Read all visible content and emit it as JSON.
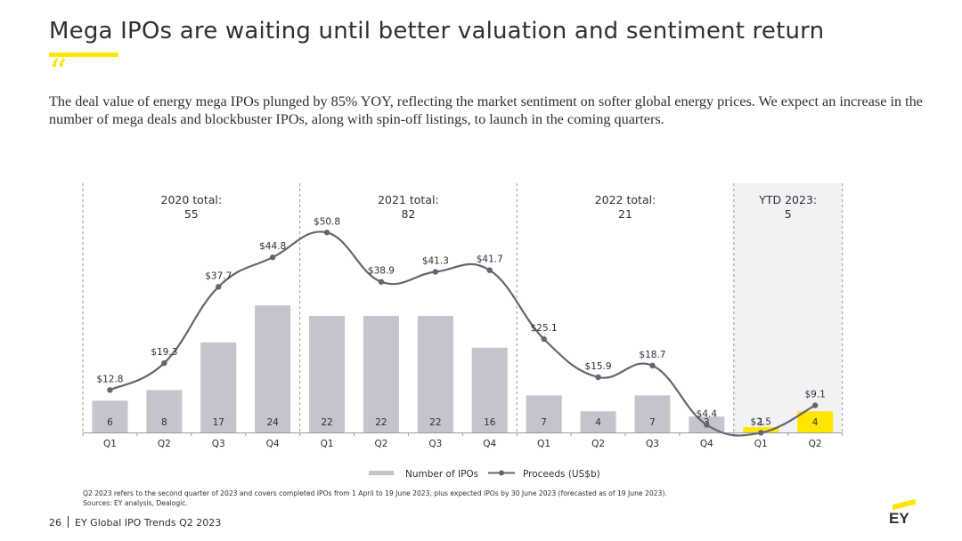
{
  "page": {
    "title": "Mega IPOs are waiting until better valuation and sentiment return",
    "quote_mark": "“",
    "lead": "The deal value of energy mega IPOs plunged by 85% YOY, reflecting the market sentiment on softer global energy prices. We expect an increase in the number of mega deals and blockbuster IPOs, along with spin-off listings, to launch in the coming quarters.",
    "note_line1": "Q2 2023 refers to the second quarter of 2023 and covers completed IPOs from 1 April to 19 June 2023, plus expected IPOs by 30 June 2023 (forecasted as of 19 June 2023).",
    "note_line2": "Sources: EY analysis, Dealogic.",
    "page_number": "26",
    "footer_text": "EY Global IPO Trends Q2 2023",
    "logo_text": "EY"
  },
  "colors": {
    "bar": "#c4c4cd",
    "bar_highlight": "#ffe600",
    "line": "#656570",
    "text": "#2e2e38",
    "ytd_panel": "#f2f2f4",
    "accent": "#ffe600"
  },
  "chart_data": {
    "type": "bar",
    "categories": [
      "Q1",
      "Q2",
      "Q3",
      "Q4",
      "Q1",
      "Q2",
      "Q3",
      "Q4",
      "Q1",
      "Q2",
      "Q3",
      "Q4",
      "Q1",
      "Q2"
    ],
    "series": [
      {
        "name": "Number of IPOs",
        "type": "bar",
        "values": [
          6,
          8,
          17,
          24,
          22,
          22,
          22,
          16,
          7,
          4,
          7,
          3,
          1,
          4
        ]
      },
      {
        "name": "Proceeds (US$b)",
        "type": "line",
        "values": [
          12.8,
          19.3,
          37.7,
          44.8,
          50.8,
          38.9,
          41.3,
          41.7,
          25.1,
          15.9,
          18.7,
          4.4,
          2.5,
          9.1
        ],
        "labels": [
          "$12.8",
          "$19.3",
          "$37.7",
          "$44.8",
          "$50.8",
          "$38.9",
          "$41.3",
          "$41.7",
          "$25.1",
          "$15.9",
          "$18.7",
          "$4.4",
          "$2.5",
          "$9.1"
        ]
      }
    ],
    "highlighted_bars": [
      12,
      13
    ],
    "groups": [
      {
        "label": "2020 total:",
        "total": "55",
        "start": 0,
        "end": 3
      },
      {
        "label": "2021 total:",
        "total": "82",
        "start": 4,
        "end": 7
      },
      {
        "label": "2022 total:",
        "total": "21",
        "start": 8,
        "end": 11
      },
      {
        "label": "YTD 2023:",
        "total": "5",
        "start": 12,
        "end": 13
      }
    ],
    "legend_position": "bottom-center"
  }
}
